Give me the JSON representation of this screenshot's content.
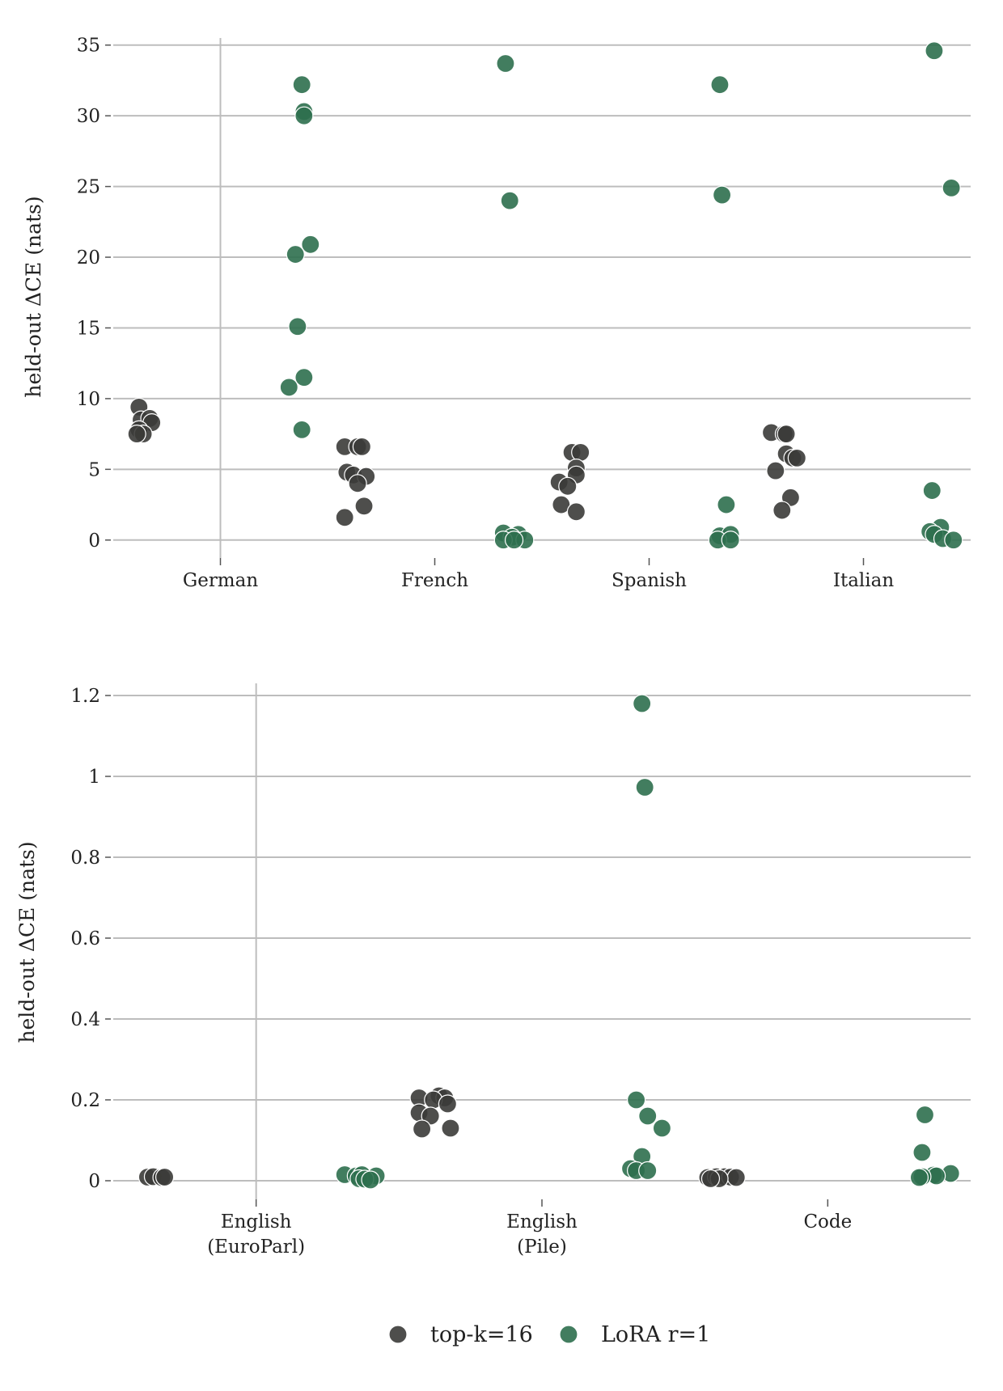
{
  "colors": {
    "topk": "#3b3b38",
    "lora": "#2e6f4e"
  },
  "legend": {
    "items": [
      {
        "label": "top-k=16",
        "color": "#3b3b38"
      },
      {
        "label": "LoRA r=1",
        "color": "#2e6f4e"
      }
    ]
  },
  "chart_data": [
    {
      "type": "scatter",
      "ylabel": "held-out ΔCE (nats)",
      "ylim": [
        -1.5,
        35.5
      ],
      "yticks": [
        0,
        5,
        10,
        15,
        20,
        25,
        30,
        35
      ],
      "yticklabels": [
        "0",
        "5",
        "10",
        "15",
        "20",
        "25",
        "30",
        "35"
      ],
      "categories": [
        {
          "label": [
            "German"
          ]
        },
        {
          "label": [
            "French"
          ]
        },
        {
          "label": [
            "Spanish"
          ]
        },
        {
          "label": [
            "Italian"
          ]
        }
      ],
      "grid": true,
      "series": [
        {
          "name": "top-k=16",
          "color": "#3b3b38",
          "points": [
            {
              "x": -0.38,
              "y": 9.4
            },
            {
              "x": -0.37,
              "y": 8.5
            },
            {
              "x": -0.33,
              "y": 8.6
            },
            {
              "x": -0.32,
              "y": 8.3
            },
            {
              "x": -0.38,
              "y": 7.8
            },
            {
              "x": -0.36,
              "y": 7.5
            },
            {
              "x": -0.39,
              "y": 7.5
            },
            {
              "x": 0.58,
              "y": 6.6
            },
            {
              "x": 0.64,
              "y": 6.6
            },
            {
              "x": 0.66,
              "y": 6.6
            },
            {
              "x": 0.59,
              "y": 4.8
            },
            {
              "x": 0.62,
              "y": 4.6
            },
            {
              "x": 0.68,
              "y": 4.5
            },
            {
              "x": 0.64,
              "y": 4.0
            },
            {
              "x": 0.67,
              "y": 2.4
            },
            {
              "x": 0.58,
              "y": 1.6
            },
            {
              "x": 1.64,
              "y": 6.2
            },
            {
              "x": 1.68,
              "y": 6.2
            },
            {
              "x": 1.66,
              "y": 5.1
            },
            {
              "x": 1.66,
              "y": 4.6
            },
            {
              "x": 1.58,
              "y": 4.1
            },
            {
              "x": 1.62,
              "y": 3.8
            },
            {
              "x": 1.59,
              "y": 2.5
            },
            {
              "x": 1.66,
              "y": 2.0
            },
            {
              "x": 2.57,
              "y": 7.6
            },
            {
              "x": 2.63,
              "y": 7.5
            },
            {
              "x": 2.64,
              "y": 7.5
            },
            {
              "x": 2.64,
              "y": 6.1
            },
            {
              "x": 2.67,
              "y": 5.8
            },
            {
              "x": 2.69,
              "y": 5.8
            },
            {
              "x": 2.59,
              "y": 4.9
            },
            {
              "x": 2.66,
              "y": 3.0
            },
            {
              "x": 2.62,
              "y": 2.1
            }
          ]
        },
        {
          "name": "LoRA r=1",
          "color": "#2e6f4e",
          "points": [
            {
              "x": 0.38,
              "y": 32.2
            },
            {
              "x": 0.39,
              "y": 30.3
            },
            {
              "x": 0.39,
              "y": 30.0
            },
            {
              "x": 0.42,
              "y": 20.9
            },
            {
              "x": 0.35,
              "y": 20.2
            },
            {
              "x": 0.36,
              "y": 15.1
            },
            {
              "x": 0.39,
              "y": 11.5
            },
            {
              "x": 0.32,
              "y": 10.8
            },
            {
              "x": 0.38,
              "y": 7.8
            },
            {
              "x": 1.33,
              "y": 33.7
            },
            {
              "x": 1.35,
              "y": 24.0
            },
            {
              "x": 1.32,
              "y": 0.5
            },
            {
              "x": 1.39,
              "y": 0.4
            },
            {
              "x": 1.36,
              "y": 0.2
            },
            {
              "x": 1.32,
              "y": 0.0
            },
            {
              "x": 1.42,
              "y": 0.0
            },
            {
              "x": 1.37,
              "y": 0.0
            },
            {
              "x": 2.33,
              "y": 32.2
            },
            {
              "x": 2.34,
              "y": 24.4
            },
            {
              "x": 2.36,
              "y": 2.5
            },
            {
              "x": 2.33,
              "y": 0.3
            },
            {
              "x": 2.38,
              "y": 0.4
            },
            {
              "x": 2.32,
              "y": 0.0
            },
            {
              "x": 2.38,
              "y": 0.0
            },
            {
              "x": 3.33,
              "y": 34.6
            },
            {
              "x": 3.41,
              "y": 24.9
            },
            {
              "x": 3.32,
              "y": 3.5
            },
            {
              "x": 3.36,
              "y": 0.9
            },
            {
              "x": 3.31,
              "y": 0.6
            },
            {
              "x": 3.33,
              "y": 0.4
            },
            {
              "x": 3.37,
              "y": 0.1
            },
            {
              "x": 3.42,
              "y": 0.0
            }
          ]
        }
      ]
    },
    {
      "type": "scatter",
      "ylabel": "held-out ΔCE (nats)",
      "ylim": [
        -0.05,
        1.23
      ],
      "yticks": [
        0,
        0.2,
        0.4,
        0.6,
        0.8,
        1.0,
        1.2
      ],
      "yticklabels": [
        "0",
        "0.2",
        "0.4",
        "0.6",
        "0.8",
        "1",
        "1.2"
      ],
      "categories": [
        {
          "label": [
            "English",
            "(EuroParl)"
          ]
        },
        {
          "label": [
            "English",
            "(Pile)"
          ]
        },
        {
          "label": [
            "Code"
          ]
        }
      ],
      "grid": true,
      "series": [
        {
          "name": "top-k=16",
          "color": "#3b3b38",
          "points": [
            {
              "x": -0.38,
              "y": 0.009
            },
            {
              "x": -0.36,
              "y": 0.01
            },
            {
              "x": -0.33,
              "y": 0.008
            },
            {
              "x": -0.32,
              "y": 0.009
            },
            {
              "x": 0.57,
              "y": 0.205
            },
            {
              "x": 0.64,
              "y": 0.21
            },
            {
              "x": 0.66,
              "y": 0.205
            },
            {
              "x": 0.62,
              "y": 0.2
            },
            {
              "x": 0.67,
              "y": 0.19
            },
            {
              "x": 0.57,
              "y": 0.168
            },
            {
              "x": 0.61,
              "y": 0.16
            },
            {
              "x": 0.58,
              "y": 0.128
            },
            {
              "x": 0.68,
              "y": 0.13
            },
            {
              "x": 1.58,
              "y": 0.008
            },
            {
              "x": 1.61,
              "y": 0.01
            },
            {
              "x": 1.64,
              "y": 0.01
            },
            {
              "x": 1.66,
              "y": 0.009
            },
            {
              "x": 1.68,
              "y": 0.008
            },
            {
              "x": 1.62,
              "y": 0.005
            },
            {
              "x": 1.59,
              "y": 0.005
            }
          ]
        },
        {
          "name": "LoRA r=1",
          "color": "#2e6f4e",
          "points": [
            {
              "x": 0.31,
              "y": 0.015
            },
            {
              "x": 0.35,
              "y": 0.012
            },
            {
              "x": 0.37,
              "y": 0.015
            },
            {
              "x": 0.42,
              "y": 0.012
            },
            {
              "x": 0.36,
              "y": 0.005
            },
            {
              "x": 0.38,
              "y": 0.004
            },
            {
              "x": 0.4,
              "y": 0.002
            },
            {
              "x": 1.35,
              "y": 1.18
            },
            {
              "x": 1.36,
              "y": 0.973
            },
            {
              "x": 1.33,
              "y": 0.2
            },
            {
              "x": 1.37,
              "y": 0.16
            },
            {
              "x": 1.42,
              "y": 0.13
            },
            {
              "x": 1.35,
              "y": 0.06
            },
            {
              "x": 1.31,
              "y": 0.03
            },
            {
              "x": 1.33,
              "y": 0.025
            },
            {
              "x": 1.37,
              "y": 0.025
            },
            {
              "x": 2.34,
              "y": 0.163
            },
            {
              "x": 2.33,
              "y": 0.07
            },
            {
              "x": 2.43,
              "y": 0.018
            },
            {
              "x": 2.37,
              "y": 0.014
            },
            {
              "x": 2.38,
              "y": 0.012
            },
            {
              "x": 2.33,
              "y": 0.01
            },
            {
              "x": 2.32,
              "y": 0.008
            }
          ]
        }
      ]
    }
  ]
}
